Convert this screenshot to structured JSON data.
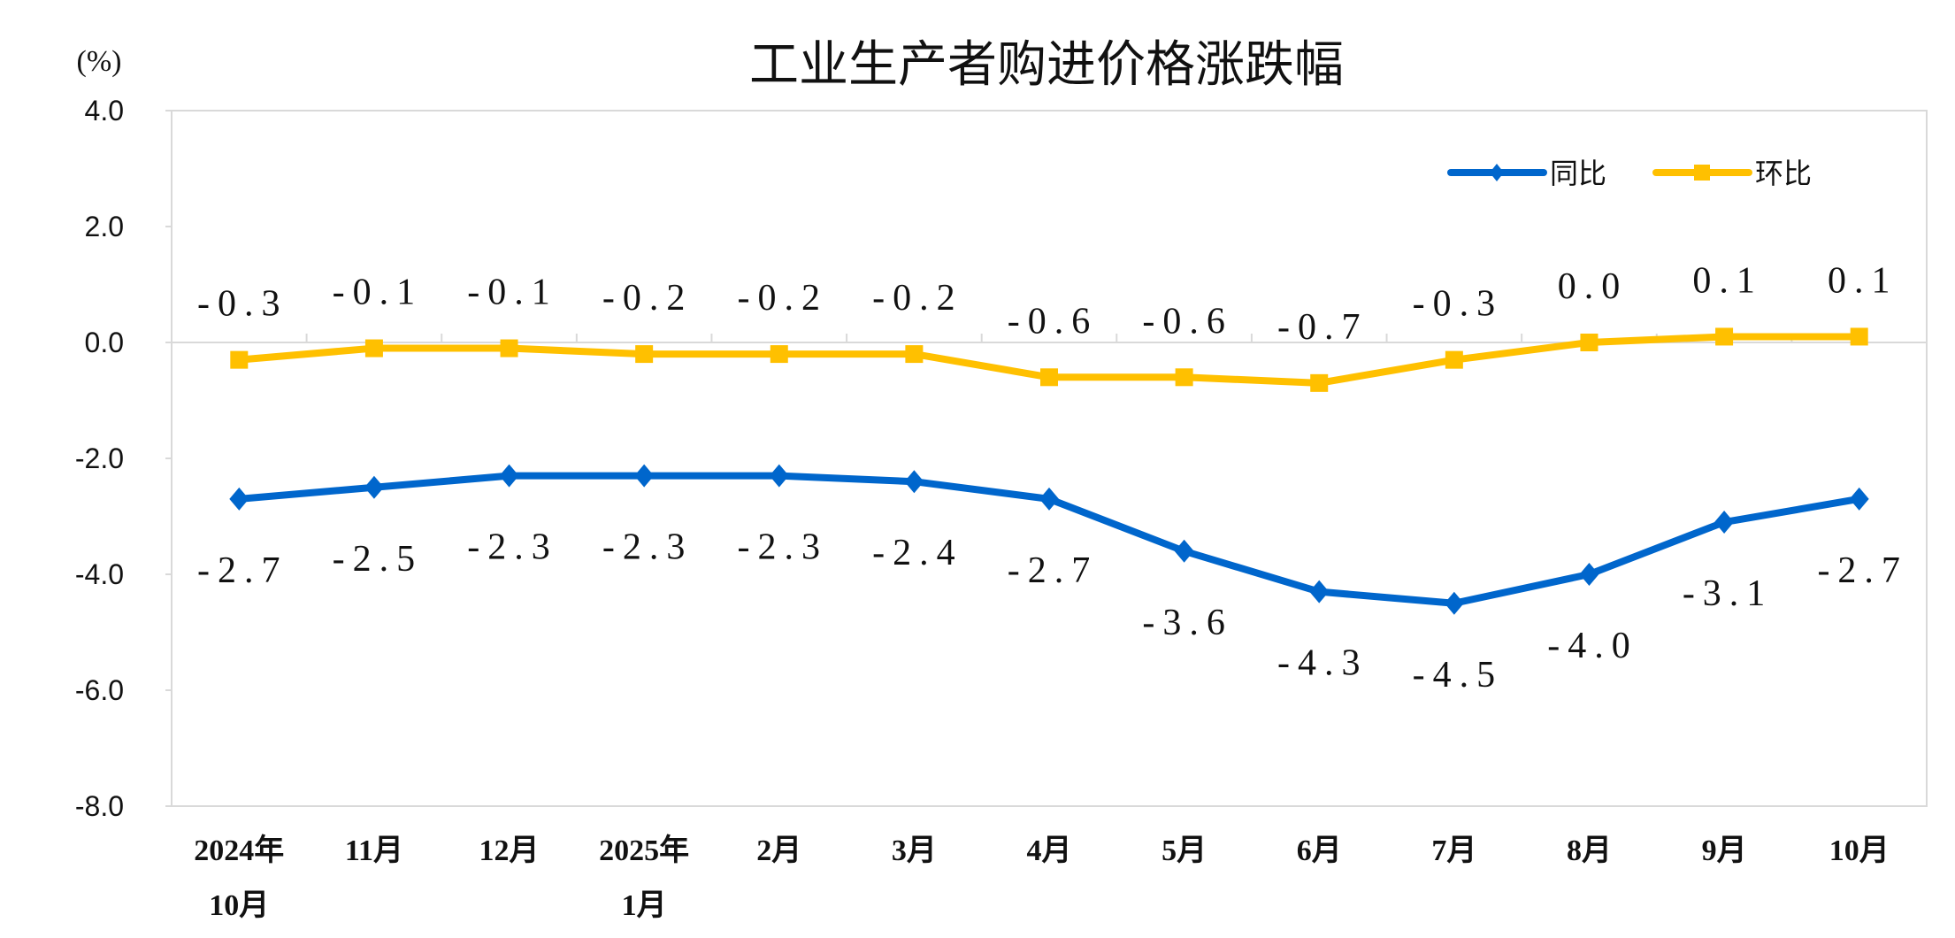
{
  "chart_data": {
    "type": "line",
    "title": "工业生产者购进价格涨跌幅",
    "ylabel": "(%)",
    "xlabel": "",
    "ylim": [
      -8.0,
      4.0
    ],
    "yticks": [
      "4.0",
      "2.0",
      "0.0",
      "-2.0",
      "-4.0",
      "-6.0",
      "-8.0"
    ],
    "ytick_values": [
      4,
      2,
      0,
      -2,
      -4,
      -6,
      -8
    ],
    "categories": [
      [
        "2024年",
        "10月"
      ],
      [
        "11月"
      ],
      [
        "12月"
      ],
      [
        "2025年",
        "1月"
      ],
      [
        "2月"
      ],
      [
        "3月"
      ],
      [
        "4月"
      ],
      [
        "5月"
      ],
      [
        "6月"
      ],
      [
        "7月"
      ],
      [
        "8月"
      ],
      [
        "9月"
      ],
      [
        "10月"
      ]
    ],
    "legend_position": "top-right",
    "grid": false,
    "series": [
      {
        "name": "同比",
        "color": "#0066cc",
        "marker": "diamond",
        "values": [
          -2.7,
          -2.5,
          -2.3,
          -2.3,
          -2.3,
          -2.4,
          -2.7,
          -3.6,
          -4.3,
          -4.5,
          -4.0,
          -3.1,
          -2.7
        ],
        "labels": [
          "-2.7",
          "-2.5",
          "-2.3",
          "-2.3",
          "-2.3",
          "-2.4",
          "-2.7",
          "-3.6",
          "-4.3",
          "-4.5",
          "-4.0",
          "-3.1",
          "-2.7"
        ],
        "label_position": "below"
      },
      {
        "name": "环比",
        "color": "#ffc000",
        "marker": "square",
        "values": [
          -0.3,
          -0.1,
          -0.1,
          -0.2,
          -0.2,
          -0.2,
          -0.6,
          -0.6,
          -0.7,
          -0.3,
          0.0,
          0.1,
          0.1
        ],
        "labels": [
          "-0.3",
          "-0.1",
          "-0.1",
          "-0.2",
          "-0.2",
          "-0.2",
          "-0.6",
          "-0.6",
          "-0.7",
          "-0.3",
          "0.0",
          "0.1",
          "0.1"
        ],
        "label_position": "above"
      }
    ]
  }
}
